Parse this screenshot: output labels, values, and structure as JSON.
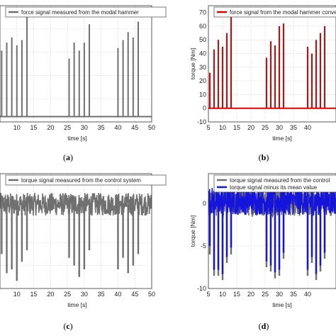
{
  "chart_data": [
    {
      "type": "bar",
      "panel_label": "a",
      "xlabel": "time [s]",
      "ylabel": "",
      "xlim": [
        5,
        50
      ],
      "ylim": [
        -2,
        42
      ],
      "xticks": [
        10,
        15,
        20,
        25,
        30,
        35,
        40,
        45,
        50
      ],
      "yticks": [],
      "grid": true,
      "legend_position": "top",
      "series": [
        {
          "name": "force signal measured from the modal hammer",
          "color": "#707070",
          "kind": "impulse",
          "baseline": 0,
          "x": [
            5.5,
            7.0,
            8.5,
            10.0,
            11.5,
            13.0,
            25.5,
            27.0,
            28.5,
            30.0,
            31.5,
            40.0,
            41.5,
            43.0,
            44.5,
            46.0
          ],
          "y": [
            25,
            28,
            30,
            27,
            29,
            40,
            22,
            28,
            25,
            28,
            35,
            26,
            29,
            32,
            30,
            36
          ]
        }
      ]
    },
    {
      "type": "bar",
      "panel_label": "b",
      "xlabel": "time [s]",
      "ylabel": "torque [Nm]",
      "xlim": [
        5,
        50
      ],
      "ylim": [
        -10,
        75
      ],
      "xticks": [
        5,
        10,
        15,
        20,
        25,
        30,
        35,
        40
      ],
      "yticks": [
        -10,
        0,
        10,
        20,
        30,
        40,
        50,
        60,
        70
      ],
      "grid": true,
      "legend_position": "top",
      "series": [
        {
          "name": "force signal from the modal hammer converted",
          "color": "#e00000",
          "kind": "impulse",
          "baseline": 0,
          "x": [
            5.5,
            7.0,
            8.5,
            10.0,
            11.5,
            13.0,
            25.5,
            27.0,
            28.5,
            30.0,
            31.5,
            40.0,
            41.5,
            43.0,
            44.5,
            46.0
          ],
          "y": [
            26,
            43,
            50,
            45,
            55,
            72,
            37,
            49,
            46,
            60,
            62,
            45,
            40,
            50,
            55,
            60
          ]
        }
      ]
    },
    {
      "type": "line",
      "panel_label": "c",
      "xlabel": "time [s]",
      "ylabel": "",
      "xlim": [
        5,
        50
      ],
      "ylim": [
        -11,
        4
      ],
      "xticks": [
        10,
        15,
        20,
        25,
        30,
        35,
        40,
        45,
        50
      ],
      "yticks": [],
      "grid": true,
      "legend_position": "top",
      "noise_band": [
        -1.5,
        1.5
      ],
      "series": [
        {
          "name": "torque signal measured from the control system",
          "color": "#707070",
          "spike_x": [
            5.5,
            7.0,
            8.5,
            10.0,
            11.5,
            13.0,
            25.5,
            27.0,
            28.5,
            30.0,
            31.5,
            40.0,
            41.5,
            43.0,
            44.5,
            46.0
          ],
          "spike_y": [
            -6.5,
            -9.0,
            -8.5,
            -10.0,
            -7.5,
            -6.0,
            -7.0,
            -8.0,
            -9.5,
            -8.5,
            -6.0,
            -8.5,
            -7.0,
            -9.0,
            -8.0,
            -6.5
          ]
        }
      ]
    },
    {
      "type": "line",
      "panel_label": "d",
      "xlabel": "time [s]",
      "ylabel": "torque [Nm]",
      "xlim": [
        5,
        50
      ],
      "ylim": [
        -10,
        3.5
      ],
      "xticks": [
        5,
        10,
        15,
        20,
        25,
        30,
        35,
        40
      ],
      "yticks": [
        -10,
        -5,
        0
      ],
      "grid": true,
      "legend_position": "top",
      "noise_band": [
        -1.5,
        1.8
      ],
      "series": [
        {
          "name": "torque signal measured from the control",
          "color": "#707070",
          "spike_x": [
            5.5,
            7.0,
            8.5,
            10.0,
            11.5,
            13.0,
            25.5,
            27.0,
            28.5,
            30.0,
            31.5,
            40.0,
            41.5,
            43.0,
            44.5,
            46.0
          ],
          "spike_y": [
            -6.0,
            -8.5,
            -8.5,
            -9.0,
            -7.0,
            -6.0,
            -7.5,
            -8.0,
            -8.8,
            -8.5,
            -6.5,
            -8.5,
            -7.0,
            -9.0,
            -8.0,
            -6.5
          ]
        },
        {
          "name": "torque signal minus its mean value",
          "color": "#1414dc",
          "spike_x": [
            5.5,
            7.0,
            8.5,
            10.0,
            11.5,
            13.0,
            25.5,
            27.0,
            28.5,
            30.0,
            31.5,
            40.0,
            41.5,
            43.0,
            44.5,
            46.0
          ],
          "spike_y": [
            -5.0,
            -7.8,
            -7.8,
            -8.3,
            -6.3,
            -5.2,
            -6.8,
            -7.3,
            -8.1,
            -7.8,
            -5.8,
            -7.8,
            -6.3,
            -8.3,
            -7.3,
            -5.8
          ]
        }
      ]
    }
  ],
  "captions": [
    "(a)",
    "(b)",
    "(c)",
    "(d)"
  ]
}
